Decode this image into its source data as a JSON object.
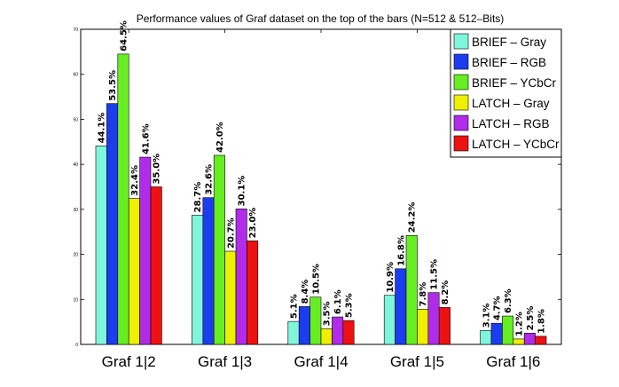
{
  "chart_data": {
    "type": "bar",
    "title": "Performance values of Graf dataset on the top of the bars (N=512 & 512–Bits)",
    "xlabel": "",
    "ylabel": "",
    "ylim": [
      0,
      70
    ],
    "yticks": [
      0,
      10,
      20,
      30,
      40,
      50,
      60,
      70
    ],
    "grid": false,
    "legend_position": "top-right",
    "categories": [
      "Graf 1|2",
      "Graf 1|3",
      "Graf 1|4",
      "Graf 1|5",
      "Graf 1|6"
    ],
    "series": [
      {
        "name": "BRIEF – Gray",
        "color": "#7ff5dc",
        "values": [
          44.1,
          28.7,
          5.1,
          10.9,
          3.1
        ],
        "labels": [
          "44.1%",
          "28.7%",
          "5.1%",
          "10.9%",
          "3.1%"
        ]
      },
      {
        "name": "BRIEF – RGB",
        "color": "#1c3cf0",
        "values": [
          53.5,
          32.6,
          8.4,
          16.8,
          4.7
        ],
        "labels": [
          "53.5%",
          "32.6%",
          "8.4%",
          "16.8%",
          "4.7%"
        ]
      },
      {
        "name": "BRIEF – YCbCr",
        "color": "#66ee22",
        "values": [
          64.5,
          42.0,
          10.5,
          24.2,
          6.3
        ],
        "labels": [
          "64.5%",
          "42.0%",
          "10.5%",
          "24.2%",
          "6.3%"
        ]
      },
      {
        "name": "LATCH – Gray",
        "color": "#eef000",
        "values": [
          32.4,
          20.7,
          3.5,
          7.8,
          1.2
        ],
        "labels": [
          "32.4%",
          "20.7%",
          "3.5%",
          "7.8%",
          "1.2%"
        ]
      },
      {
        "name": "LATCH – RGB",
        "color": "#b02ce8",
        "values": [
          41.6,
          30.1,
          6.1,
          11.5,
          2.5
        ],
        "labels": [
          "41.6%",
          "30.1%",
          "6.1%",
          "11.5%",
          "2.5%"
        ]
      },
      {
        "name": "LATCH – YCbCr",
        "color": "#ee1111",
        "values": [
          35.0,
          23.0,
          5.3,
          8.2,
          1.8
        ],
        "labels": [
          "35.0%",
          "23.0%",
          "5.3%",
          "8.2%",
          "1.8%"
        ]
      }
    ]
  }
}
